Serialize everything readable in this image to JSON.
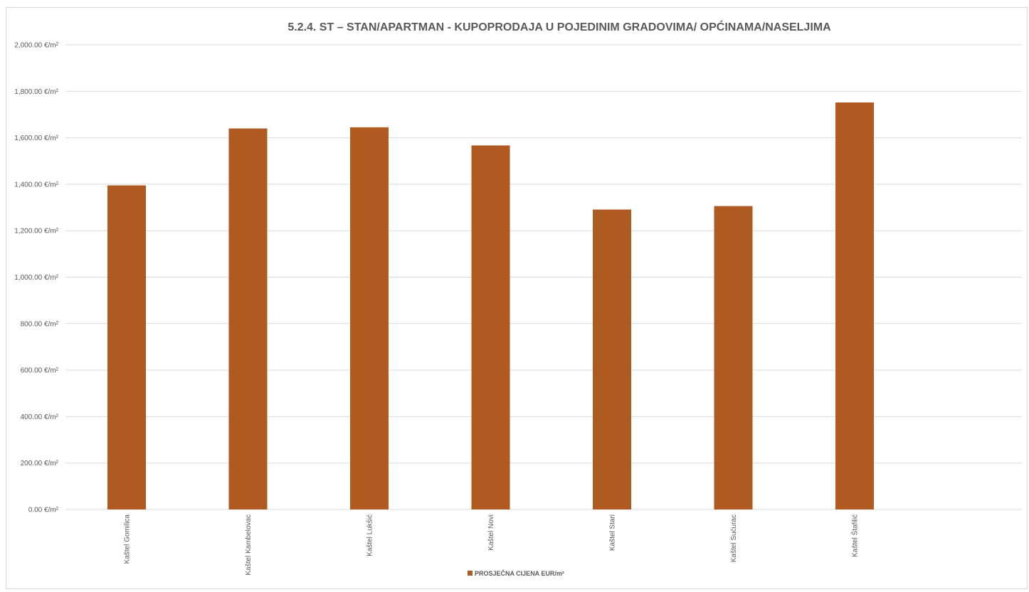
{
  "chart_data": {
    "type": "bar",
    "title": "5.2.4. ST – STAN/APARTMAN - KUPOPRODAJA U POJEDINIM GRADOVIMA/ OPĆINAMA/NASELJIMA",
    "categories": [
      "Kaštel Gomilica",
      "Kaštel Kambelovac",
      "Kaštel Lukšić",
      "Kaštel Novi",
      "Kaštel Stari",
      "Kaštel Sućurac",
      "Kaštel Štafilić"
    ],
    "series": [
      {
        "name": "PROSJEČNA CIJENA EUR/m²",
        "values": [
          1395,
          1640,
          1645,
          1567,
          1291,
          1306,
          1752
        ],
        "color": "#ae5a21"
      }
    ],
    "y_ticks": [
      "0.00 €/m²",
      "200.00 €/m²",
      "400.00 €/m²",
      "600.00 €/m²",
      "800.00 €/m²",
      "1,000.00 €/m²",
      "1,200.00 €/m²",
      "1,400.00 €/m²",
      "1,600.00 €/m²",
      "1,800.00 €/m²",
      "2,000.00 €/m²"
    ],
    "ylim": [
      0,
      2000
    ],
    "grid": true,
    "legend_position": "bottom"
  }
}
